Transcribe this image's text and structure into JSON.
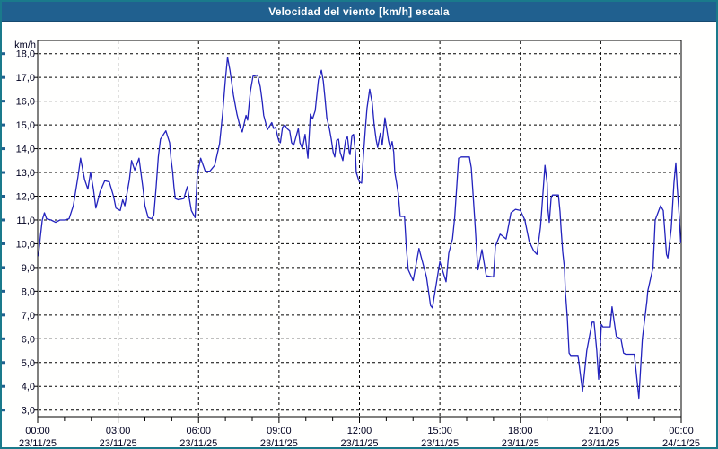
{
  "window": {
    "title": "Velocidad del viento [km/h] escala"
  },
  "colors": {
    "window_border": "#1a7a8b",
    "titlebar": "#20608f",
    "title_text": "#ffffff",
    "plot_background": "#fffffe",
    "line": "#2222bd",
    "grid": "#000000",
    "axis_text": "#000020",
    "edge_tick": "#20608f"
  },
  "chart_data": {
    "type": "line",
    "title": "Velocidad del viento [km/h] escala",
    "ylabel": "km/h",
    "unit_label": "km/h",
    "ylim": [
      3.0,
      18.0
    ],
    "ytick_step": 1.0,
    "ytick_labels": [
      "18,0",
      "17,0",
      "16,0",
      "15,0",
      "14,0",
      "13,0",
      "12,0",
      "11,0",
      "10,0",
      "9,0",
      "8,0",
      "7,0",
      "6,0",
      "5,0",
      "4,0",
      "3,0"
    ],
    "x_hours_range": [
      0,
      24
    ],
    "x_minor_tick_hours": 1,
    "grid": "dashed",
    "legend_position": "none",
    "xticks": [
      {
        "hour": 0,
        "time": "00:00",
        "date": "23/11/25"
      },
      {
        "hour": 3,
        "time": "03:00",
        "date": "23/11/25"
      },
      {
        "hour": 6,
        "time": "06:00",
        "date": "23/11/25"
      },
      {
        "hour": 9,
        "time": "09:00",
        "date": "23/11/25"
      },
      {
        "hour": 12,
        "time": "12:00",
        "date": "23/11/25"
      },
      {
        "hour": 15,
        "time": "15:00",
        "date": "23/11/25"
      },
      {
        "hour": 18,
        "time": "18:00",
        "date": "23/11/25"
      },
      {
        "hour": 21,
        "time": "21:00",
        "date": "23/11/25"
      },
      {
        "hour": 24,
        "time": "00:00",
        "date": "24/11/25"
      }
    ],
    "points": [
      [
        0.03,
        9.5
      ],
      [
        0.1,
        10.3
      ],
      [
        0.17,
        11.0
      ],
      [
        0.25,
        11.3
      ],
      [
        0.33,
        11.05
      ],
      [
        0.5,
        11.0
      ],
      [
        0.67,
        10.9
      ],
      [
        0.83,
        11.0
      ],
      [
        1.0,
        11.0
      ],
      [
        1.17,
        11.05
      ],
      [
        1.33,
        11.6
      ],
      [
        1.5,
        12.8
      ],
      [
        1.6,
        13.6
      ],
      [
        1.75,
        12.7
      ],
      [
        1.87,
        12.3
      ],
      [
        1.97,
        13.0
      ],
      [
        2.08,
        12.3
      ],
      [
        2.17,
        11.5
      ],
      [
        2.33,
        12.2
      ],
      [
        2.5,
        12.65
      ],
      [
        2.67,
        12.6
      ],
      [
        2.83,
        12.0
      ],
      [
        2.92,
        11.5
      ],
      [
        3.0,
        11.45
      ],
      [
        3.08,
        11.4
      ],
      [
        3.17,
        11.85
      ],
      [
        3.25,
        11.6
      ],
      [
        3.42,
        12.7
      ],
      [
        3.5,
        13.5
      ],
      [
        3.62,
        13.1
      ],
      [
        3.78,
        13.6
      ],
      [
        3.92,
        12.4
      ],
      [
        4.0,
        11.6
      ],
      [
        4.12,
        11.1
      ],
      [
        4.25,
        11.05
      ],
      [
        4.33,
        11.2
      ],
      [
        4.42,
        12.4
      ],
      [
        4.5,
        13.65
      ],
      [
        4.58,
        14.4
      ],
      [
        4.78,
        14.75
      ],
      [
        4.92,
        14.25
      ],
      [
        4.97,
        13.6
      ],
      [
        5.03,
        13.05
      ],
      [
        5.08,
        12.4
      ],
      [
        5.13,
        11.9
      ],
      [
        5.25,
        11.85
      ],
      [
        5.45,
        11.9
      ],
      [
        5.58,
        12.4
      ],
      [
        5.73,
        11.4
      ],
      [
        5.87,
        11.1
      ],
      [
        5.95,
        12.9
      ],
      [
        6.08,
        13.6
      ],
      [
        6.25,
        13.05
      ],
      [
        6.42,
        13.05
      ],
      [
        6.6,
        13.3
      ],
      [
        6.78,
        14.2
      ],
      [
        6.9,
        15.5
      ],
      [
        7.0,
        16.9
      ],
      [
        7.08,
        17.85
      ],
      [
        7.17,
        17.3
      ],
      [
        7.3,
        16.25
      ],
      [
        7.43,
        15.45
      ],
      [
        7.55,
        14.9
      ],
      [
        7.63,
        14.7
      ],
      [
        7.77,
        15.4
      ],
      [
        7.83,
        15.2
      ],
      [
        7.93,
        16.4
      ],
      [
        8.03,
        17.05
      ],
      [
        8.2,
        17.1
      ],
      [
        8.3,
        16.6
      ],
      [
        8.37,
        16.0
      ],
      [
        8.43,
        15.4
      ],
      [
        8.57,
        14.8
      ],
      [
        8.73,
        15.1
      ],
      [
        8.8,
        14.85
      ],
      [
        8.87,
        14.9
      ],
      [
        8.95,
        14.5
      ],
      [
        9.0,
        14.3
      ],
      [
        9.05,
        14.25
      ],
      [
        9.13,
        14.9
      ],
      [
        9.22,
        15.0
      ],
      [
        9.3,
        14.85
      ],
      [
        9.4,
        14.75
      ],
      [
        9.47,
        14.25
      ],
      [
        9.55,
        14.15
      ],
      [
        9.72,
        14.85
      ],
      [
        9.78,
        14.25
      ],
      [
        9.87,
        14.0
      ],
      [
        9.97,
        14.6
      ],
      [
        10.08,
        13.6
      ],
      [
        10.17,
        15.45
      ],
      [
        10.25,
        15.25
      ],
      [
        10.35,
        15.6
      ],
      [
        10.47,
        16.9
      ],
      [
        10.58,
        17.3
      ],
      [
        10.65,
        16.85
      ],
      [
        10.72,
        16.05
      ],
      [
        10.78,
        15.3
      ],
      [
        10.88,
        14.85
      ],
      [
        10.95,
        14.4
      ],
      [
        11.02,
        13.85
      ],
      [
        11.08,
        13.65
      ],
      [
        11.15,
        14.35
      ],
      [
        11.22,
        14.4
      ],
      [
        11.28,
        13.85
      ],
      [
        11.38,
        13.5
      ],
      [
        11.48,
        14.35
      ],
      [
        11.55,
        14.5
      ],
      [
        11.62,
        13.85
      ],
      [
        11.65,
        13.75
      ],
      [
        11.72,
        14.55
      ],
      [
        11.78,
        14.6
      ],
      [
        11.85,
        13.85
      ],
      [
        11.88,
        13.0
      ],
      [
        11.95,
        12.75
      ],
      [
        12.0,
        12.6
      ],
      [
        12.08,
        12.55
      ],
      [
        12.15,
        13.75
      ],
      [
        12.22,
        14.85
      ],
      [
        12.28,
        15.7
      ],
      [
        12.38,
        16.5
      ],
      [
        12.48,
        15.9
      ],
      [
        12.55,
        15.0
      ],
      [
        12.62,
        14.4
      ],
      [
        12.68,
        14.05
      ],
      [
        12.78,
        14.65
      ],
      [
        12.85,
        14.15
      ],
      [
        12.95,
        15.3
      ],
      [
        13.02,
        14.8
      ],
      [
        13.08,
        14.35
      ],
      [
        13.15,
        14.0
      ],
      [
        13.22,
        14.3
      ],
      [
        13.28,
        13.85
      ],
      [
        13.32,
        13.0
      ],
      [
        13.38,
        12.6
      ],
      [
        13.45,
        12.1
      ],
      [
        13.52,
        11.15
      ],
      [
        13.68,
        11.15
      ],
      [
        13.75,
        9.8
      ],
      [
        13.82,
        8.9
      ],
      [
        14.0,
        8.45
      ],
      [
        14.22,
        9.8
      ],
      [
        14.5,
        8.6
      ],
      [
        14.65,
        7.4
      ],
      [
        14.72,
        7.3
      ],
      [
        15.0,
        9.25
      ],
      [
        15.23,
        8.4
      ],
      [
        15.33,
        9.6
      ],
      [
        15.47,
        10.2
      ],
      [
        15.55,
        11.1
      ],
      [
        15.7,
        13.6
      ],
      [
        15.8,
        13.65
      ],
      [
        16.1,
        13.65
      ],
      [
        16.17,
        13.2
      ],
      [
        16.23,
        12.2
      ],
      [
        16.3,
        11.0
      ],
      [
        16.37,
        9.7
      ],
      [
        16.42,
        8.9
      ],
      [
        16.57,
        9.75
      ],
      [
        16.73,
        8.65
      ],
      [
        17.0,
        8.6
      ],
      [
        17.07,
        9.9
      ],
      [
        17.25,
        10.4
      ],
      [
        17.47,
        10.2
      ],
      [
        17.65,
        11.3
      ],
      [
        17.82,
        11.45
      ],
      [
        18.0,
        11.4
      ],
      [
        18.17,
        11.0
      ],
      [
        18.33,
        10.1
      ],
      [
        18.5,
        9.7
      ],
      [
        18.62,
        9.55
      ],
      [
        18.75,
        10.7
      ],
      [
        18.85,
        12.2
      ],
      [
        18.92,
        13.3
      ],
      [
        19.0,
        12.55
      ],
      [
        19.03,
        11.45
      ],
      [
        19.08,
        10.9
      ],
      [
        19.15,
        11.95
      ],
      [
        19.2,
        12.05
      ],
      [
        19.42,
        12.05
      ],
      [
        19.48,
        11.35
      ],
      [
        19.52,
        10.6
      ],
      [
        19.58,
        9.65
      ],
      [
        19.65,
        8.95
      ],
      [
        19.68,
        8.0
      ],
      [
        19.75,
        6.95
      ],
      [
        19.82,
        5.4
      ],
      [
        19.88,
        5.3
      ],
      [
        20.15,
        5.3
      ],
      [
        20.25,
        4.4
      ],
      [
        20.32,
        3.8
      ],
      [
        20.48,
        5.5
      ],
      [
        20.68,
        6.7
      ],
      [
        20.75,
        6.7
      ],
      [
        20.85,
        5.5
      ],
      [
        20.92,
        4.3
      ],
      [
        21.02,
        6.6
      ],
      [
        21.08,
        6.5
      ],
      [
        21.35,
        6.5
      ],
      [
        21.42,
        7.35
      ],
      [
        21.58,
        6.1
      ],
      [
        21.75,
        6.0
      ],
      [
        21.85,
        5.4
      ],
      [
        21.93,
        5.35
      ],
      [
        22.25,
        5.35
      ],
      [
        22.33,
        4.5
      ],
      [
        22.42,
        3.5
      ],
      [
        22.55,
        6.0
      ],
      [
        22.72,
        7.6
      ],
      [
        22.75,
        8.0
      ],
      [
        22.95,
        9.0
      ],
      [
        23.03,
        11.0
      ],
      [
        23.23,
        11.6
      ],
      [
        23.33,
        11.4
      ],
      [
        23.45,
        9.55
      ],
      [
        23.5,
        9.4
      ],
      [
        23.63,
        10.65
      ],
      [
        23.73,
        12.55
      ],
      [
        23.8,
        13.4
      ],
      [
        23.85,
        12.4
      ],
      [
        23.93,
        11.1
      ],
      [
        23.98,
        10.05
      ]
    ]
  }
}
